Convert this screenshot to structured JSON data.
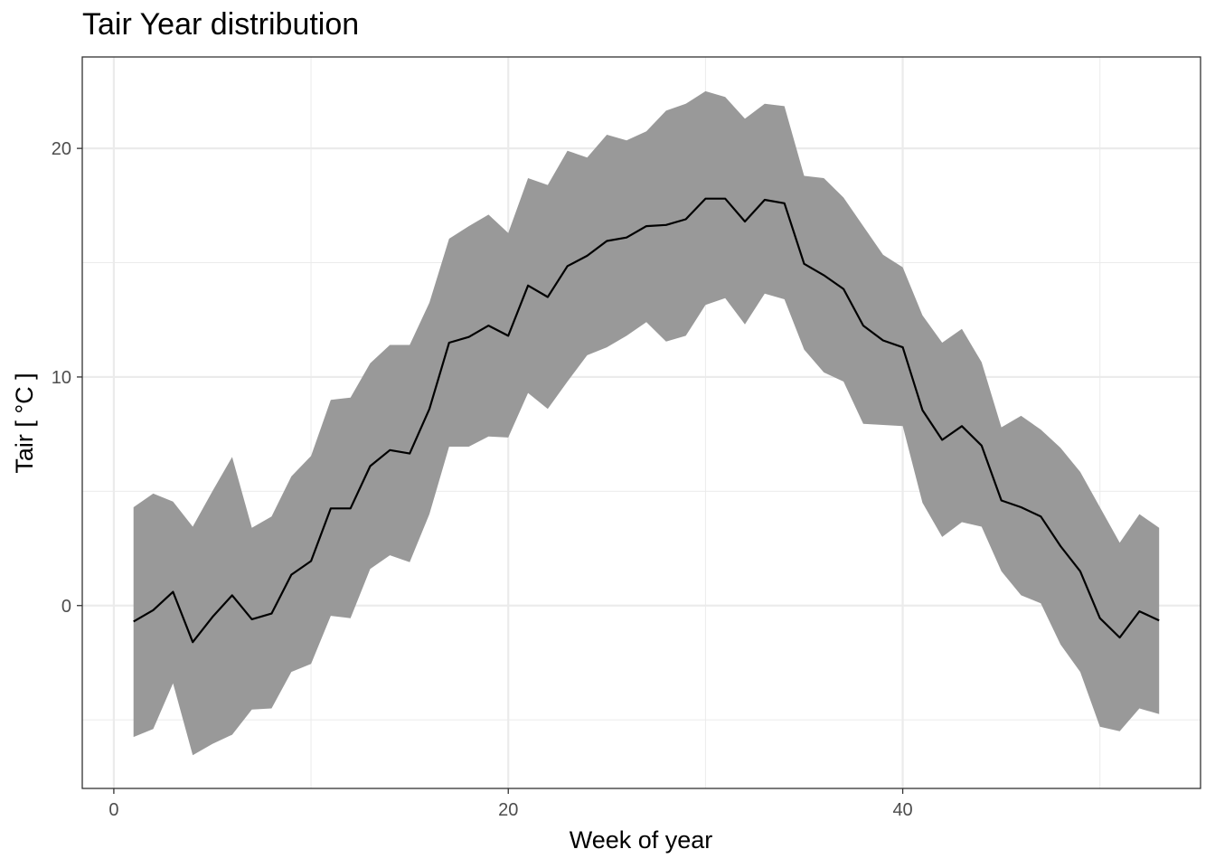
{
  "chart_data": {
    "type": "area",
    "title": "Tair Year distribution",
    "xlabel": "Week of year",
    "ylabel": "Tair [ °C ]",
    "xlim": [
      -1.6,
      55.1
    ],
    "ylim": [
      -8.0,
      24.0
    ],
    "x_ticks": [
      0,
      20,
      40
    ],
    "y_ticks": [
      0,
      10,
      20
    ],
    "grid": true,
    "colors": {
      "band": "#999999",
      "line": "#000000",
      "grid": "#ebebeb",
      "border": "#333333"
    },
    "x": [
      1,
      2,
      3,
      4,
      5,
      6,
      7,
      8,
      9,
      10,
      11,
      12,
      13,
      14,
      15,
      16,
      17,
      18,
      19,
      20,
      21,
      22,
      23,
      24,
      25,
      26,
      27,
      28,
      29,
      30,
      31,
      32,
      33,
      34,
      35,
      36,
      37,
      38,
      39,
      40,
      41,
      42,
      43,
      44,
      45,
      46,
      47,
      48,
      49,
      50,
      51,
      52,
      53
    ],
    "series": [
      {
        "type": "line",
        "values": [
          -0.7,
          -0.2,
          0.6,
          -1.6,
          -0.5,
          0.45,
          -0.6,
          -0.35,
          1.35,
          1.95,
          4.25,
          4.25,
          6.1,
          6.8,
          6.65,
          8.6,
          11.5,
          11.75,
          12.25,
          11.8,
          14.0,
          13.5,
          14.85,
          15.3,
          15.95,
          16.1,
          16.6,
          16.65,
          16.9,
          17.8,
          17.8,
          16.8,
          17.75,
          17.6,
          14.95,
          14.45,
          13.85,
          12.25,
          11.6,
          11.3,
          8.55,
          7.25,
          7.85,
          7.0,
          4.6,
          4.3,
          3.9,
          2.6,
          1.5,
          -0.55,
          -1.4,
          -0.25,
          -0.65
        ]
      },
      {
        "type": "band",
        "upper": [
          4.3,
          4.9,
          4.55,
          3.45,
          5.0,
          6.5,
          3.4,
          3.9,
          5.65,
          6.55,
          9.0,
          9.1,
          10.6,
          11.4,
          11.4,
          13.25,
          16.05,
          16.6,
          17.1,
          16.3,
          18.7,
          18.4,
          19.9,
          19.6,
          20.6,
          20.35,
          20.75,
          21.65,
          21.95,
          22.5,
          22.25,
          21.3,
          21.95,
          21.85,
          18.8,
          18.7,
          17.85,
          16.6,
          15.35,
          14.8,
          12.7,
          11.5,
          12.1,
          10.65,
          7.8,
          8.3,
          7.7,
          6.9,
          5.85,
          4.3,
          2.75,
          4.0,
          3.4
        ]
      },
      {
        "type": "band",
        "lower": [
          -5.75,
          -5.4,
          -3.4,
          -6.55,
          -6.05,
          -5.65,
          -4.55,
          -4.5,
          -2.9,
          -2.55,
          -0.45,
          -0.55,
          1.6,
          2.2,
          1.9,
          4.0,
          6.95,
          6.95,
          7.4,
          7.35,
          9.3,
          8.6,
          9.8,
          10.95,
          11.3,
          11.8,
          12.4,
          11.55,
          11.8,
          13.15,
          13.45,
          12.3,
          13.65,
          13.4,
          11.2,
          10.2,
          9.8,
          7.95,
          7.9,
          7.85,
          4.5,
          3.0,
          3.65,
          3.45,
          1.5,
          0.45,
          0.1,
          -1.7,
          -2.9,
          -5.3,
          -5.5,
          -4.5,
          -4.75
        ]
      }
    ]
  }
}
